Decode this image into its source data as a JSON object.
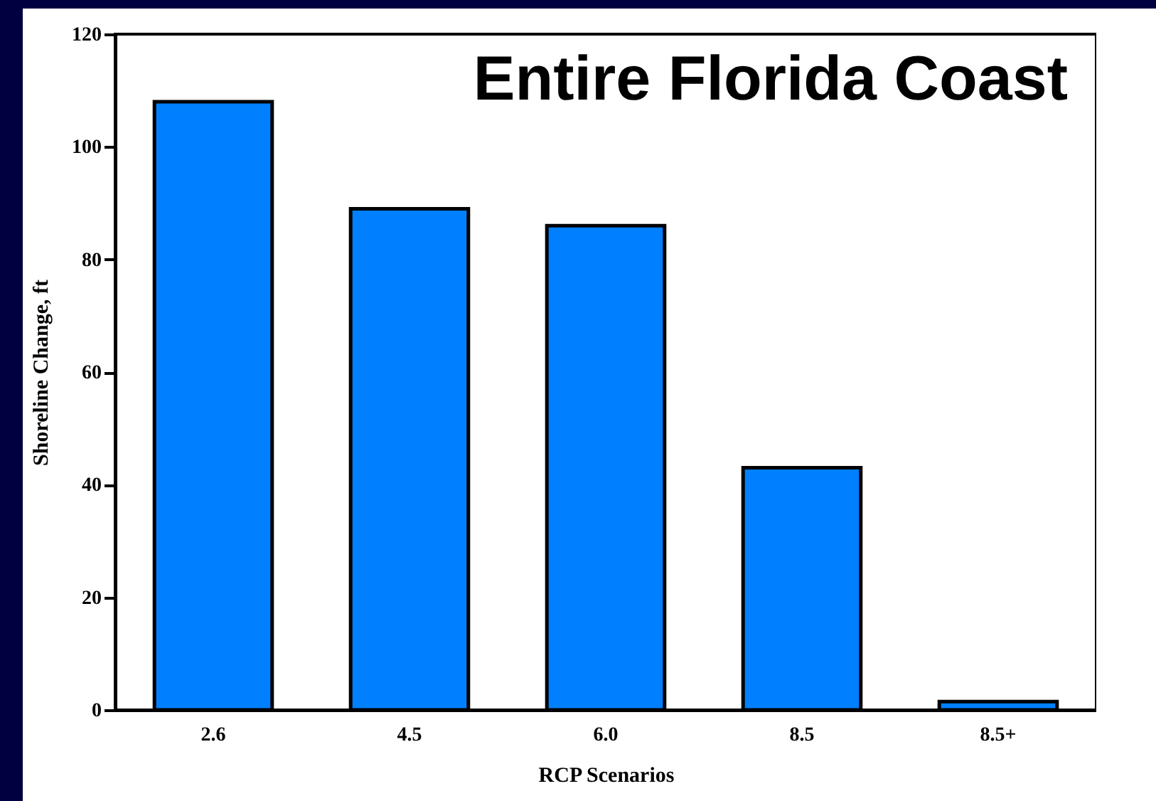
{
  "chart_data": {
    "type": "bar",
    "title": "Entire Florida Coast",
    "xlabel": "RCP Scenarios",
    "ylabel": "Shoreline Change, ft",
    "categories": [
      "2.6",
      "4.5",
      "6.0",
      "8.5",
      "8.5+"
    ],
    "values": [
      108,
      89,
      86,
      43,
      1.5
    ],
    "color": "#0080ff",
    "ylim": [
      0,
      120
    ],
    "yticks": [
      0,
      20,
      40,
      60,
      80,
      100,
      120
    ],
    "grid": false
  }
}
